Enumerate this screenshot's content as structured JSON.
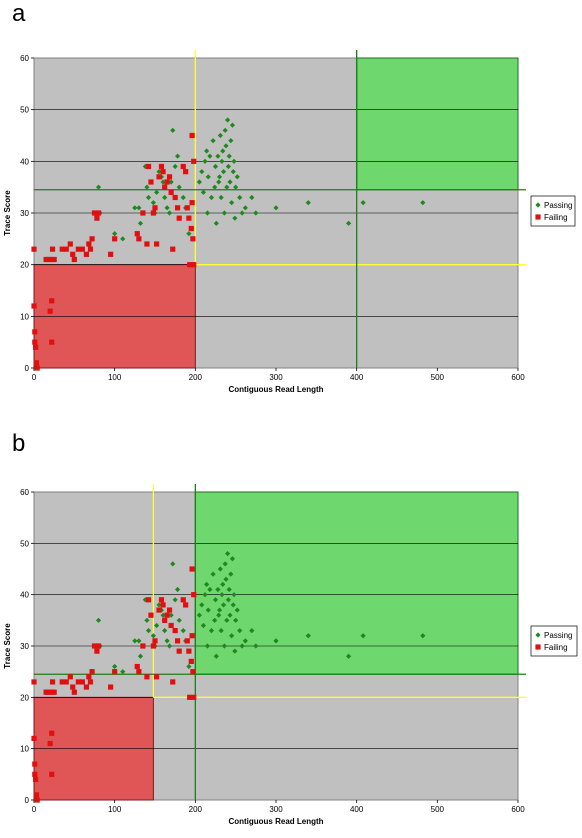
{
  "chart_data": [
    {
      "type": "scatter",
      "panel_label": "a",
      "xlabel": "Contiguous Read Length",
      "ylabel": "Trace Score",
      "xlim": [
        0,
        600
      ],
      "ylim": [
        0,
        60
      ],
      "x_ticks": [
        0,
        100,
        200,
        300,
        400,
        500,
        600
      ],
      "y_ticks": [
        0,
        10,
        20,
        30,
        40,
        50,
        60
      ],
      "grid": "horizontal",
      "legend_position": "right",
      "thresholds": {
        "yellow_x": 200,
        "yellow_y": 20,
        "green_x": 400,
        "green_y": 34.5
      },
      "regions": [
        {
          "kind": "pass",
          "x": [
            400,
            600
          ],
          "y": [
            34.5,
            60
          ],
          "color": "#6ed86e"
        },
        {
          "kind": "fail",
          "x": [
            0,
            200
          ],
          "y": [
            0,
            20
          ],
          "color": "#e05656"
        }
      ],
      "series": [
        {
          "name": "Passing",
          "color": "#1e8a1e",
          "marker": "diamond",
          "points": [
            [
              80,
              35
            ],
            [
              82,
              30
            ],
            [
              100,
              26
            ],
            [
              110,
              25
            ],
            [
              125,
              31
            ],
            [
              130,
              31
            ],
            [
              132,
              28
            ],
            [
              135,
              30
            ],
            [
              138,
              39
            ],
            [
              140,
              35
            ],
            [
              142,
              33
            ],
            [
              145,
              36
            ],
            [
              148,
              32
            ],
            [
              150,
              30
            ],
            [
              152,
              34
            ],
            [
              155,
              38
            ],
            [
              158,
              37
            ],
            [
              160,
              36
            ],
            [
              162,
              33
            ],
            [
              165,
              31
            ],
            [
              168,
              30
            ],
            [
              170,
              36
            ],
            [
              172,
              46
            ],
            [
              175,
              39
            ],
            [
              178,
              41
            ],
            [
              180,
              35
            ],
            [
              185,
              33
            ],
            [
              188,
              31
            ],
            [
              192,
              26
            ],
            [
              205,
              36
            ],
            [
              208,
              38
            ],
            [
              210,
              34
            ],
            [
              212,
              40
            ],
            [
              214,
              42
            ],
            [
              215,
              30
            ],
            [
              216,
              37
            ],
            [
              218,
              41
            ],
            [
              220,
              33
            ],
            [
              222,
              44
            ],
            [
              224,
              35
            ],
            [
              225,
              39
            ],
            [
              226,
              28
            ],
            [
              228,
              41
            ],
            [
              229,
              36
            ],
            [
              230,
              37
            ],
            [
              231,
              45
            ],
            [
              232,
              33
            ],
            [
              233,
              40
            ],
            [
              234,
              42
            ],
            [
              235,
              38
            ],
            [
              236,
              30
            ],
            [
              237,
              46
            ],
            [
              238,
              43
            ],
            [
              239,
              35
            ],
            [
              240,
              48
            ],
            [
              241,
              39
            ],
            [
              242,
              41
            ],
            [
              243,
              36
            ],
            [
              244,
              44
            ],
            [
              245,
              32
            ],
            [
              246,
              47
            ],
            [
              247,
              38
            ],
            [
              248,
              40
            ],
            [
              249,
              29
            ],
            [
              250,
              35
            ],
            [
              252,
              37
            ],
            [
              255,
              33
            ],
            [
              258,
              30
            ],
            [
              262,
              31
            ],
            [
              270,
              33
            ],
            [
              275,
              30
            ],
            [
              300,
              31
            ],
            [
              340,
              32
            ],
            [
              390,
              28
            ],
            [
              408,
              32
            ],
            [
              482,
              32
            ]
          ]
        },
        {
          "name": "Failing",
          "color": "#e01010",
          "marker": "square",
          "points": [
            [
              0,
              23
            ],
            [
              0,
              12
            ],
            [
              1,
              7
            ],
            [
              1,
              5
            ],
            [
              2,
              4
            ],
            [
              3,
              1
            ],
            [
              4,
              0
            ],
            [
              15,
              21
            ],
            [
              18,
              21
            ],
            [
              20,
              11
            ],
            [
              22,
              13
            ],
            [
              22,
              5
            ],
            [
              22,
              21
            ],
            [
              23,
              23
            ],
            [
              25,
              21
            ],
            [
              35,
              23
            ],
            [
              40,
              23
            ],
            [
              45,
              24
            ],
            [
              48,
              22
            ],
            [
              50,
              21
            ],
            [
              55,
              23
            ],
            [
              60,
              23
            ],
            [
              65,
              22
            ],
            [
              68,
              24
            ],
            [
              70,
              23
            ],
            [
              72,
              25
            ],
            [
              75,
              30
            ],
            [
              78,
              29
            ],
            [
              80,
              30
            ],
            [
              95,
              22
            ],
            [
              100,
              25
            ],
            [
              128,
              26
            ],
            [
              130,
              25
            ],
            [
              135,
              30
            ],
            [
              140,
              24
            ],
            [
              142,
              39
            ],
            [
              145,
              36
            ],
            [
              148,
              30
            ],
            [
              150,
              31
            ],
            [
              152,
              24
            ],
            [
              155,
              37
            ],
            [
              158,
              39
            ],
            [
              160,
              38
            ],
            [
              162,
              35
            ],
            [
              165,
              36
            ],
            [
              168,
              37
            ],
            [
              170,
              34
            ],
            [
              172,
              23
            ],
            [
              175,
              33
            ],
            [
              178,
              31
            ],
            [
              180,
              29
            ],
            [
              185,
              39
            ],
            [
              188,
              38
            ],
            [
              190,
              31
            ],
            [
              192,
              29
            ],
            [
              193,
              20
            ],
            [
              195,
              27
            ],
            [
              196,
              32
            ],
            [
              196,
              45
            ],
            [
              197,
              25
            ],
            [
              198,
              40
            ],
            [
              198,
              20
            ]
          ]
        }
      ]
    },
    {
      "type": "scatter",
      "panel_label": "b",
      "xlabel": "Contiguous Read Length",
      "ylabel": "Trace Score",
      "xlim": [
        0,
        600
      ],
      "ylim": [
        0,
        60
      ],
      "x_ticks": [
        0,
        100,
        200,
        300,
        400,
        500,
        600
      ],
      "y_ticks": [
        0,
        10,
        20,
        30,
        40,
        50,
        60
      ],
      "grid": "horizontal",
      "legend_position": "right",
      "thresholds": {
        "yellow_x": 148,
        "yellow_y": 20,
        "green_x": 200,
        "green_y": 24.5
      },
      "regions": [
        {
          "kind": "pass",
          "x": [
            200,
            600
          ],
          "y": [
            24.5,
            60
          ],
          "color": "#6ed86e"
        },
        {
          "kind": "fail",
          "x": [
            0,
            148
          ],
          "y": [
            0,
            20
          ],
          "color": "#e05656"
        }
      ],
      "series": [
        {
          "name": "Passing",
          "color": "#1e8a1e",
          "marker": "diamond",
          "same_as_panel": "a"
        },
        {
          "name": "Failing",
          "color": "#e01010",
          "marker": "square",
          "same_as_panel": "a"
        }
      ]
    }
  ]
}
